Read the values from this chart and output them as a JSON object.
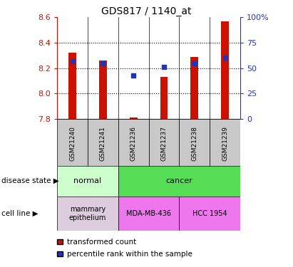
{
  "title": "GDS817 / 1140_at",
  "samples": [
    "GSM21240",
    "GSM21241",
    "GSM21236",
    "GSM21237",
    "GSM21238",
    "GSM21239"
  ],
  "transformed_count": [
    8.32,
    8.26,
    7.81,
    8.13,
    8.29,
    8.57
  ],
  "percentile_rank": [
    57,
    55,
    43,
    51,
    55,
    60
  ],
  "y_min": 7.8,
  "y_max": 8.6,
  "y_ticks": [
    7.8,
    8.0,
    8.2,
    8.4,
    8.6
  ],
  "right_y_ticks": [
    0,
    25,
    50,
    75,
    100
  ],
  "right_y_labels": [
    "0",
    "25",
    "50",
    "75",
    "100%"
  ],
  "bar_color": "#CC1100",
  "dot_color": "#2233BB",
  "disease_state_normal": "normal",
  "disease_state_cancer": "cancer",
  "cell_line_mammary": "mammary\nepithelium",
  "cell_line_mda": "MDA-MB-436",
  "cell_line_hcc": "HCC 1954",
  "normal_color": "#CCFFCC",
  "cancer_color": "#55DD55",
  "mammary_color": "#DDCCDD",
  "mda_color": "#EE77EE",
  "hcc_color": "#EE77EE",
  "gray_color": "#C8C8C8",
  "legend_red": "transformed count",
  "legend_blue": "percentile rank within the sample",
  "tick_label_color_left": "#CC1100",
  "tick_label_color_right": "#2233BB",
  "bar_width": 0.25
}
